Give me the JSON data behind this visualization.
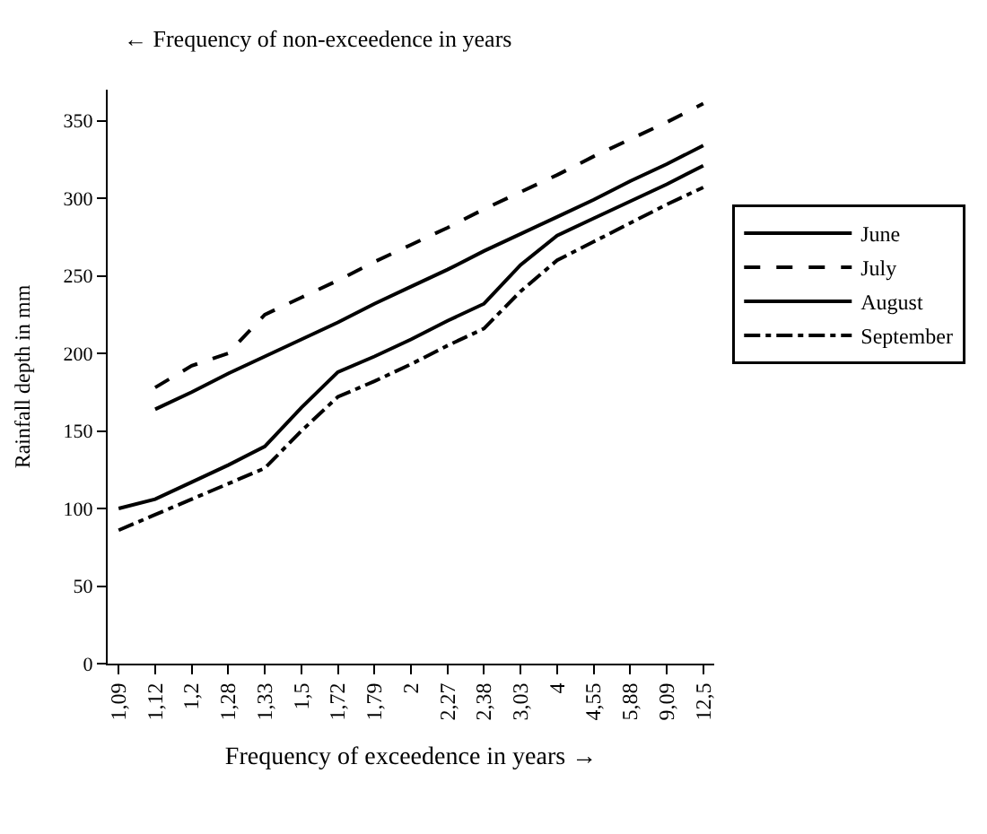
{
  "chart_data": {
    "type": "line",
    "xlabel": "Frequency of exceedence in years →",
    "ylabel": "Rainfall depth in mm",
    "annotations": [
      "← Frequency of non-exceedence in years"
    ],
    "categories": [
      "1,09",
      "1,12",
      "1,2",
      "1,28",
      "1,33",
      "1,5",
      "1,72",
      "1,79",
      "2",
      "2,27",
      "2,38",
      "3,03",
      "4",
      "4,55",
      "5,88",
      "9,09",
      "12,5"
    ],
    "series": [
      {
        "name": "June",
        "color": "#000000",
        "line_style": "solid",
        "values": [
          null,
          164,
          175,
          187,
          198,
          209,
          220,
          232,
          243,
          254,
          266,
          277,
          288,
          299,
          311,
          322,
          334
        ]
      },
      {
        "name": "July",
        "color": "#000000",
        "line_style": "dashed",
        "values": [
          null,
          178,
          192,
          200,
          225,
          236,
          247,
          259,
          270,
          281,
          293,
          304,
          315,
          327,
          338,
          349,
          361
        ]
      },
      {
        "name": "August",
        "color": "#000000",
        "line_style": "solid",
        "values": [
          100,
          106,
          117,
          128,
          140,
          165,
          188,
          198,
          209,
          221,
          232,
          257,
          276,
          287,
          298,
          309,
          321
        ]
      },
      {
        "name": "September",
        "color": "#000000",
        "line_style": "dashdot",
        "values": [
          86,
          96,
          106,
          116,
          126,
          150,
          172,
          182,
          193,
          205,
          216,
          240,
          260,
          272,
          284,
          296,
          307
        ]
      }
    ],
    "ylim": [
      0,
      370
    ],
    "yticks": [
      0,
      50,
      100,
      150,
      200,
      250,
      300,
      350
    ],
    "legend": "right",
    "marker": "none"
  }
}
